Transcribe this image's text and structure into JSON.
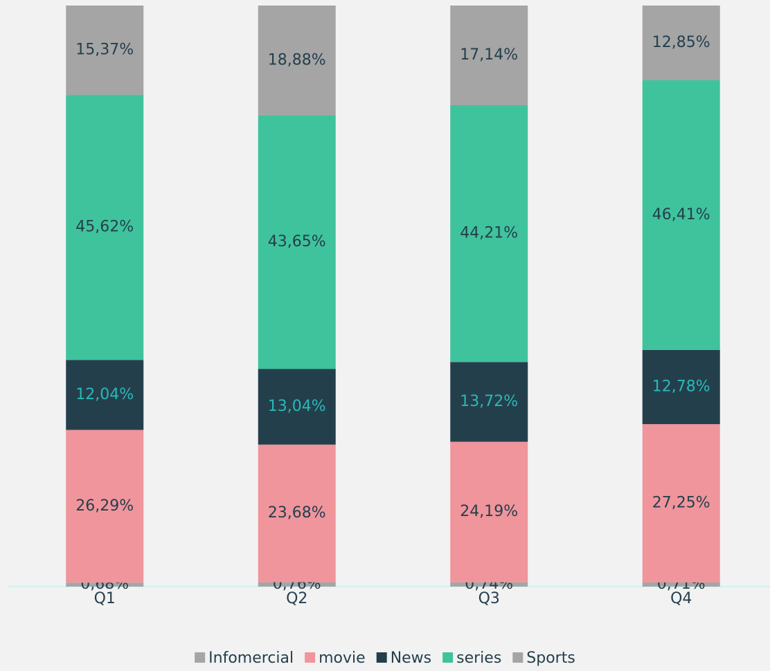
{
  "chart_data": {
    "type": "stacked_bar",
    "categories": [
      "Q1",
      "Q2",
      "Q3",
      "Q4"
    ],
    "series": [
      {
        "name": "Infomercial",
        "color": "#a5a5a5",
        "label_color": "#243f4c",
        "values": [
          0.68,
          0.76,
          0.74,
          0.71
        ],
        "value_labels": [
          "0,68%",
          "0,76%",
          "0,74%",
          "0,71%"
        ]
      },
      {
        "name": "movie",
        "color": "#f0959c",
        "label_color": "#243f4c",
        "values": [
          26.29,
          23.68,
          24.19,
          27.25
        ],
        "value_labels": [
          "26,29%",
          "23,68%",
          "24,19%",
          "27,25%"
        ]
      },
      {
        "name": "News",
        "color": "#243f4c",
        "label_color": "#2ab8b8",
        "values": [
          12.04,
          13.04,
          13.72,
          12.78
        ],
        "value_labels": [
          "12,04%",
          "13,04%",
          "13,72%",
          "12,78%"
        ]
      },
      {
        "name": "series",
        "color": "#3fc39c",
        "label_color": "#243f4c",
        "values": [
          45.62,
          43.65,
          44.21,
          46.41
        ],
        "value_labels": [
          "45,62%",
          "43,65%",
          "44,21%",
          "46,41%"
        ]
      },
      {
        "name": "Sports",
        "color": "#a5a5a5",
        "label_color": "#243f4c",
        "values": [
          15.37,
          18.88,
          17.14,
          12.85
        ],
        "value_labels": [
          "15,37%",
          "18,88%",
          "17,14%",
          "12,85%"
        ]
      }
    ]
  }
}
